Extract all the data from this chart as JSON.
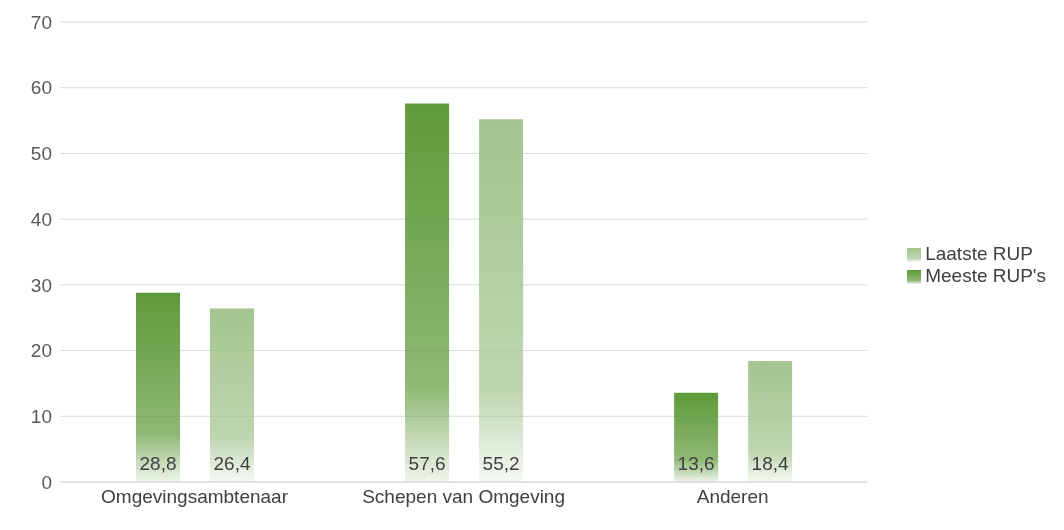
{
  "chart_data": {
    "type": "bar",
    "categories": [
      "Omgevingsambtenaar",
      "Schepen van Omgeving",
      "Anderen"
    ],
    "series": [
      {
        "name": "Meeste RUP's",
        "color": "#5f9a3a",
        "values": [
          28.8,
          57.6,
          13.6
        ],
        "value_labels": [
          "28,8",
          "57,6",
          "13,6"
        ]
      },
      {
        "name": "Laatste RUP",
        "color": "#a3c58f",
        "values": [
          26.4,
          55.2,
          18.4
        ],
        "value_labels": [
          "26,4",
          "55,2",
          "18,4"
        ]
      }
    ],
    "ylim": [
      0,
      70
    ],
    "yticks": [
      0,
      10,
      20,
      30,
      40,
      50,
      60,
      70
    ],
    "grid": "y",
    "legend": "right"
  }
}
